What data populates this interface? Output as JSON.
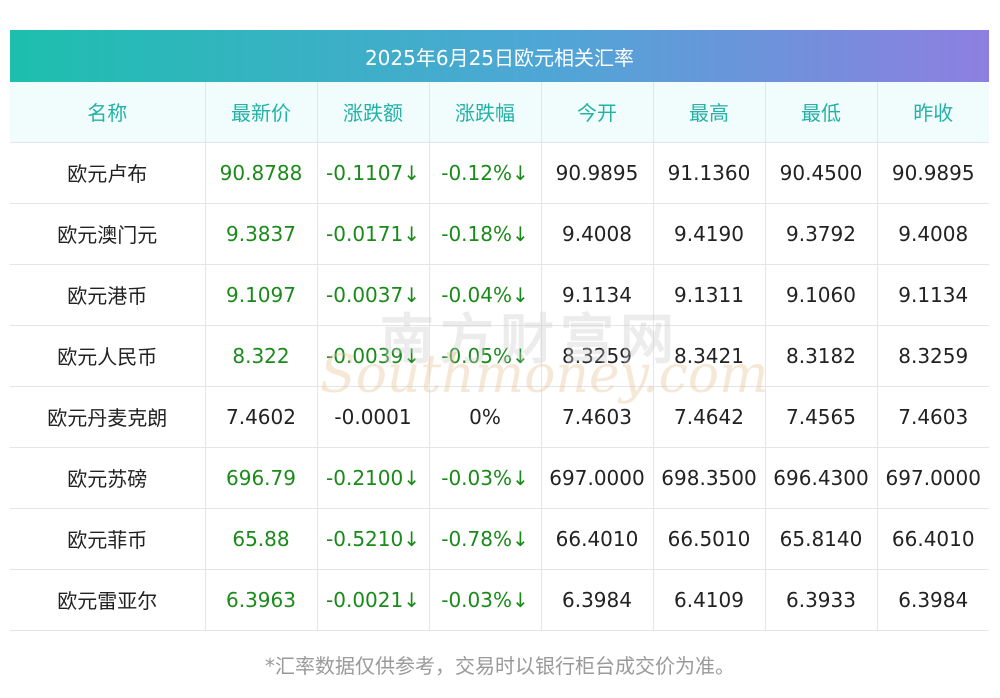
{
  "title": "2025年6月25日欧元相关汇率",
  "columns": [
    "名称",
    "最新价",
    "涨跌额",
    "涨跌幅",
    "今开",
    "最高",
    "最低",
    "昨收"
  ],
  "rows": [
    {
      "name": "欧元卢布",
      "latest": "90.8788",
      "change": "-0.1107↓",
      "pct": "-0.12%↓",
      "open": "90.9895",
      "high": "91.1360",
      "low": "90.4500",
      "prev_close": "90.9895",
      "trend": "down"
    },
    {
      "name": "欧元澳门元",
      "latest": "9.3837",
      "change": "-0.0171↓",
      "pct": "-0.18%↓",
      "open": "9.4008",
      "high": "9.4190",
      "low": "9.3792",
      "prev_close": "9.4008",
      "trend": "down"
    },
    {
      "name": "欧元港币",
      "latest": "9.1097",
      "change": "-0.0037↓",
      "pct": "-0.04%↓",
      "open": "9.1134",
      "high": "9.1311",
      "low": "9.1060",
      "prev_close": "9.1134",
      "trend": "down"
    },
    {
      "name": "欧元人民币",
      "latest": "8.322",
      "change": "-0.0039↓",
      "pct": "-0.05%↓",
      "open": "8.3259",
      "high": "8.3421",
      "low": "8.3182",
      "prev_close": "8.3259",
      "trend": "down"
    },
    {
      "name": "欧元丹麦克朗",
      "latest": "7.4602",
      "change": "-0.0001",
      "pct": "0%",
      "open": "7.4603",
      "high": "7.4642",
      "low": "7.4565",
      "prev_close": "7.4603",
      "trend": "flat"
    },
    {
      "name": "欧元苏磅",
      "latest": "696.79",
      "change": "-0.2100↓",
      "pct": "-0.03%↓",
      "open": "697.0000",
      "high": "698.3500",
      "low": "696.4300",
      "prev_close": "697.0000",
      "trend": "down"
    },
    {
      "name": "欧元菲币",
      "latest": "65.88",
      "change": "-0.5210↓",
      "pct": "-0.78%↓",
      "open": "66.4010",
      "high": "66.5010",
      "low": "65.8140",
      "prev_close": "66.4010",
      "trend": "down"
    },
    {
      "name": "欧元雷亚尔",
      "latest": "6.3963",
      "change": "-0.0021↓",
      "pct": "-0.03%↓",
      "open": "6.3984",
      "high": "6.4109",
      "low": "6.3933",
      "prev_close": "6.3984",
      "trend": "down"
    }
  ],
  "watermark": {
    "cn": "南方财富网",
    "en": "Southmoney.com"
  },
  "footnote": "*汇率数据仅供参考，交易时以银行柜台成交价为准。",
  "colors": {
    "header_text": "#24b2a6",
    "down": "#1a8a1a",
    "gradient_start": "#1dbfae",
    "gradient_end": "#8d7fe0"
  }
}
